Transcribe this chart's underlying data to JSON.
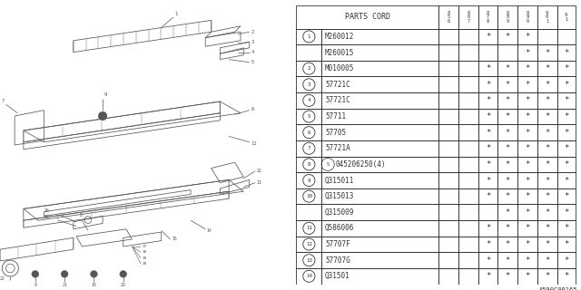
{
  "bg_color": "#ffffff",
  "border_color": "#333333",
  "text_color": "#333333",
  "diagram_color": "#555555",
  "watermark": "A590C00165",
  "year_labels": [
    "8\n5\n6",
    "8\n6\n7",
    "8\n7\n8",
    "8\n8\n9",
    "8\n9\n0",
    "9\n0\n1",
    "9\n1"
  ],
  "rows": [
    {
      "circle": 1,
      "label": "M260012",
      "stars": [
        0,
        0,
        1,
        1,
        1,
        0,
        0
      ]
    },
    {
      "circle": 0,
      "label": "M260015",
      "stars": [
        0,
        0,
        0,
        0,
        1,
        1,
        1
      ]
    },
    {
      "circle": 2,
      "label": "M010005",
      "stars": [
        0,
        0,
        1,
        1,
        1,
        1,
        1
      ]
    },
    {
      "circle": 3,
      "label": "57721C",
      "stars": [
        0,
        0,
        1,
        1,
        1,
        1,
        1
      ]
    },
    {
      "circle": 4,
      "label": "57721C",
      "stars": [
        0,
        0,
        1,
        1,
        1,
        1,
        1
      ]
    },
    {
      "circle": 5,
      "label": "57711",
      "stars": [
        0,
        0,
        1,
        1,
        1,
        1,
        1
      ]
    },
    {
      "circle": 6,
      "label": "57705",
      "stars": [
        0,
        0,
        1,
        1,
        1,
        1,
        1
      ]
    },
    {
      "circle": 7,
      "label": "57721A",
      "stars": [
        0,
        0,
        1,
        1,
        1,
        1,
        1
      ]
    },
    {
      "circle": 8,
      "label": "S045206250(4)",
      "stars": [
        0,
        0,
        1,
        1,
        1,
        1,
        1
      ]
    },
    {
      "circle": 9,
      "label": "Q315011",
      "stars": [
        0,
        0,
        1,
        1,
        1,
        1,
        1
      ]
    },
    {
      "circle": 10,
      "label": "Q315013",
      "stars": [
        0,
        0,
        1,
        1,
        1,
        1,
        1
      ]
    },
    {
      "circle": 0,
      "label": "Q315009",
      "stars": [
        0,
        0,
        0,
        1,
        1,
        1,
        1
      ]
    },
    {
      "circle": 11,
      "label": "Q586006",
      "stars": [
        0,
        0,
        1,
        1,
        1,
        1,
        1
      ]
    },
    {
      "circle": 12,
      "label": "57707F",
      "stars": [
        0,
        0,
        1,
        1,
        1,
        1,
        1
      ]
    },
    {
      "circle": 13,
      "label": "57707G",
      "stars": [
        0,
        0,
        1,
        1,
        1,
        1,
        1
      ]
    },
    {
      "circle": 14,
      "label": "Q31501",
      "stars": [
        0,
        0,
        1,
        1,
        1,
        1,
        1
      ]
    }
  ]
}
